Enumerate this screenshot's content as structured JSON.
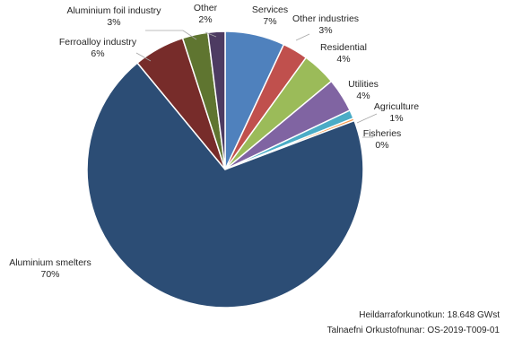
{
  "chart_data": {
    "type": "pie",
    "slices": [
      {
        "label": "Services",
        "pct_label": "7%",
        "value": 7,
        "color": "#4f81bd"
      },
      {
        "label": "Other industries",
        "pct_label": "3%",
        "value": 3,
        "color": "#c0504d"
      },
      {
        "label": "Residential",
        "pct_label": "4%",
        "value": 4,
        "color": "#9bbb59"
      },
      {
        "label": "Utilities",
        "pct_label": "4%",
        "value": 4,
        "color": "#8064a2"
      },
      {
        "label": "Agriculture",
        "pct_label": "1%",
        "value": 1,
        "color": "#4bacc6"
      },
      {
        "label": "Fisheries",
        "pct_label": "0%",
        "value": 0.3,
        "color": "#f79646"
      },
      {
        "label": "Aluminium smelters",
        "pct_label": "70%",
        "value": 70,
        "color": "#2c4d75"
      },
      {
        "label": "Ferroalloy industry",
        "pct_label": "6%",
        "value": 6,
        "color": "#772c2a"
      },
      {
        "label": "Aluminium foil industry",
        "pct_label": "3%",
        "value": 3,
        "color": "#5f7530"
      },
      {
        "label": "Other",
        "pct_label": "2%",
        "value": 2,
        "color": "#4d3b62"
      }
    ]
  },
  "footer": {
    "total": "Heildarraforkunotkun: 18.648 GWst",
    "source": "Talnaefni Orkustofnunar: OS-2019-T009-01"
  }
}
